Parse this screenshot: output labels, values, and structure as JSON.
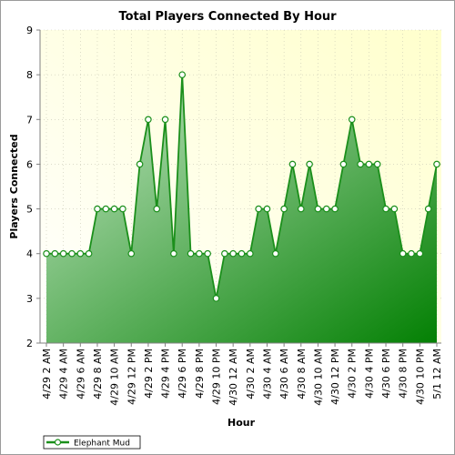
{
  "chart_data": {
    "type": "area",
    "title": "Total Players Connected By Hour",
    "xlabel": "Hour",
    "ylabel": "Players Connected",
    "ylim": [
      2,
      9
    ],
    "yticks": [
      2,
      3,
      4,
      5,
      6,
      7,
      8,
      9
    ],
    "grid": true,
    "legend_position": "bottom-left",
    "colors": {
      "fill_light": "#c2e6c2",
      "fill_dark": "#0a830a",
      "line": "#1b8f1b",
      "plot_bg_light": "#fffff7",
      "plot_bg_warm": "#ffffd2",
      "marker_fill": "#ffffff"
    },
    "x_tick_labels": [
      "4/29 2 AM",
      "4/29 4 AM",
      "4/29 6 AM",
      "4/29 8 AM",
      "4/29 10 AM",
      "4/29 12 PM",
      "4/29 2 PM",
      "4/29 4 PM",
      "4/29 6 PM",
      "4/29 8 PM",
      "4/29 10 PM",
      "4/30 12 AM",
      "4/30 2 AM",
      "4/30 4 AM",
      "4/30 6 AM",
      "4/30 8 AM",
      "4/30 10 AM",
      "4/30 12 PM",
      "4/30 2 PM",
      "4/30 4 PM",
      "4/30 6 PM",
      "4/30 8 PM",
      "4/30 10 PM",
      "5/1 12 AM"
    ],
    "series": [
      {
        "name": "Elephant Mud",
        "values": [
          4,
          4,
          4,
          4,
          4,
          4,
          5,
          5,
          5,
          5,
          4,
          6,
          7,
          5,
          7,
          4,
          8,
          4,
          4,
          4,
          3,
          4,
          4,
          4,
          4,
          5,
          5,
          4,
          5,
          6,
          5,
          6,
          5,
          5,
          5,
          6,
          7,
          6,
          6,
          6,
          5,
          5,
          4,
          4,
          4,
          5,
          6
        ]
      }
    ]
  }
}
